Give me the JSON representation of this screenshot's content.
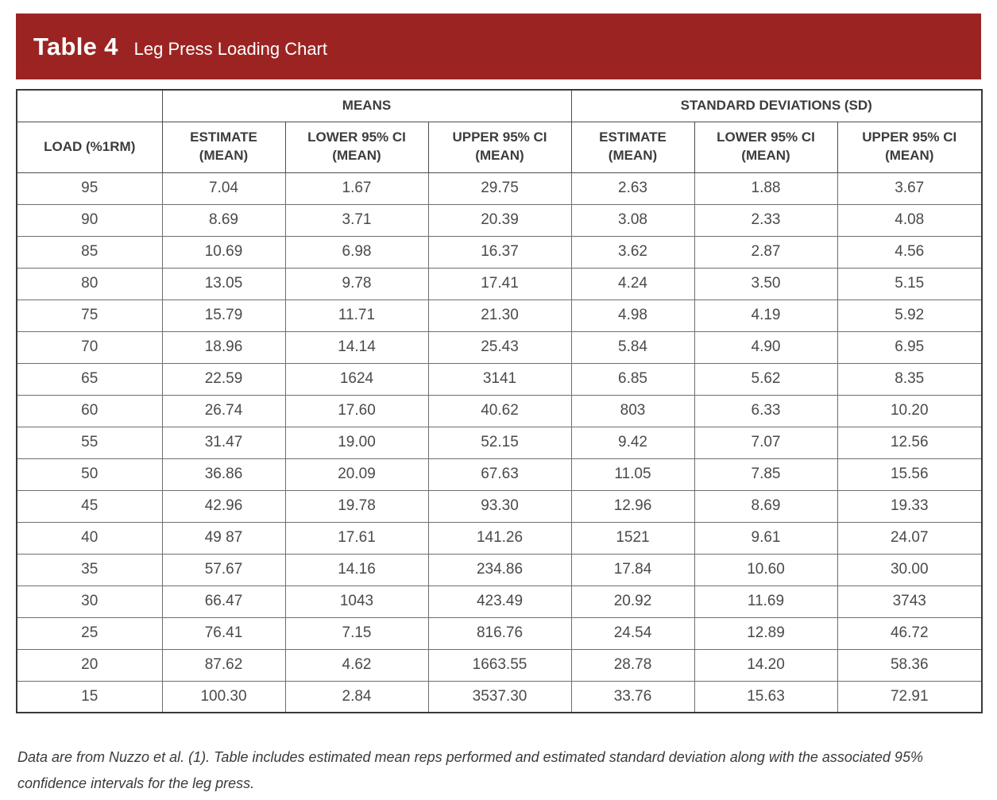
{
  "banner": {
    "title": "Table 4",
    "subtitle": "Leg Press Loading Chart",
    "bg_color": "#9B2423"
  },
  "table": {
    "group_headers": {
      "means": "MEANS",
      "sd": "STANDARD DEVIATIONS (SD)"
    },
    "col_headers": [
      "LOAD (%1RM)",
      "ESTIMATE\n(MEAN)",
      "LOWER 95% CI\n(MEAN)",
      "UPPER 95% CI\n(MEAN)",
      "ESTIMATE\n(MEAN)",
      "LOWER 95% CI\n(MEAN)",
      "UPPER 95% CI\n(MEAN)"
    ],
    "rows": [
      [
        "95",
        "7.04",
        "1.67",
        "29.75",
        "2.63",
        "1.88",
        "3.67"
      ],
      [
        "90",
        "8.69",
        "3.71",
        "20.39",
        "3.08",
        "2.33",
        "4.08"
      ],
      [
        "85",
        "10.69",
        "6.98",
        "16.37",
        "3.62",
        "2.87",
        "4.56"
      ],
      [
        "80",
        "13.05",
        "9.78",
        "17.41",
        "4.24",
        "3.50",
        "5.15"
      ],
      [
        "75",
        "15.79",
        "11.71",
        "21.30",
        "4.98",
        "4.19",
        "5.92"
      ],
      [
        "70",
        "18.96",
        "14.14",
        "25.43",
        "5.84",
        "4.90",
        "6.95"
      ],
      [
        "65",
        "22.59",
        "1624",
        "3141",
        "6.85",
        "5.62",
        "8.35"
      ],
      [
        "60",
        "26.74",
        "17.60",
        "40.62",
        "803",
        "6.33",
        "10.20"
      ],
      [
        "55",
        "31.47",
        "19.00",
        "52.15",
        "9.42",
        "7.07",
        "12.56"
      ],
      [
        "50",
        "36.86",
        "20.09",
        "67.63",
        "11.05",
        "7.85",
        "15.56"
      ],
      [
        "45",
        "42.96",
        "19.78",
        "93.30",
        "12.96",
        "8.69",
        "19.33"
      ],
      [
        "40",
        "49 87",
        "17.61",
        "141.26",
        "1521",
        "9.61",
        "24.07"
      ],
      [
        "35",
        "57.67",
        "14.16",
        "234.86",
        "17.84",
        "10.60",
        "30.00"
      ],
      [
        "30",
        "66.47",
        "1043",
        "423.49",
        "20.92",
        "11.69",
        "3743"
      ],
      [
        "25",
        "76.41",
        "7.15",
        "816.76",
        "24.54",
        "12.89",
        "46.72"
      ],
      [
        "20",
        "87.62",
        "4.62",
        "1663.55",
        "28.78",
        "14.20",
        "58.36"
      ],
      [
        "15",
        "100.30",
        "2.84",
        "3537.30",
        "33.76",
        "15.63",
        "72.91"
      ]
    ]
  },
  "footnote": "Data are from Nuzzo et al. (1). Table includes estimated mean reps performed and estimated standard deviation along with the associated 95% confidence intervals for the leg press."
}
